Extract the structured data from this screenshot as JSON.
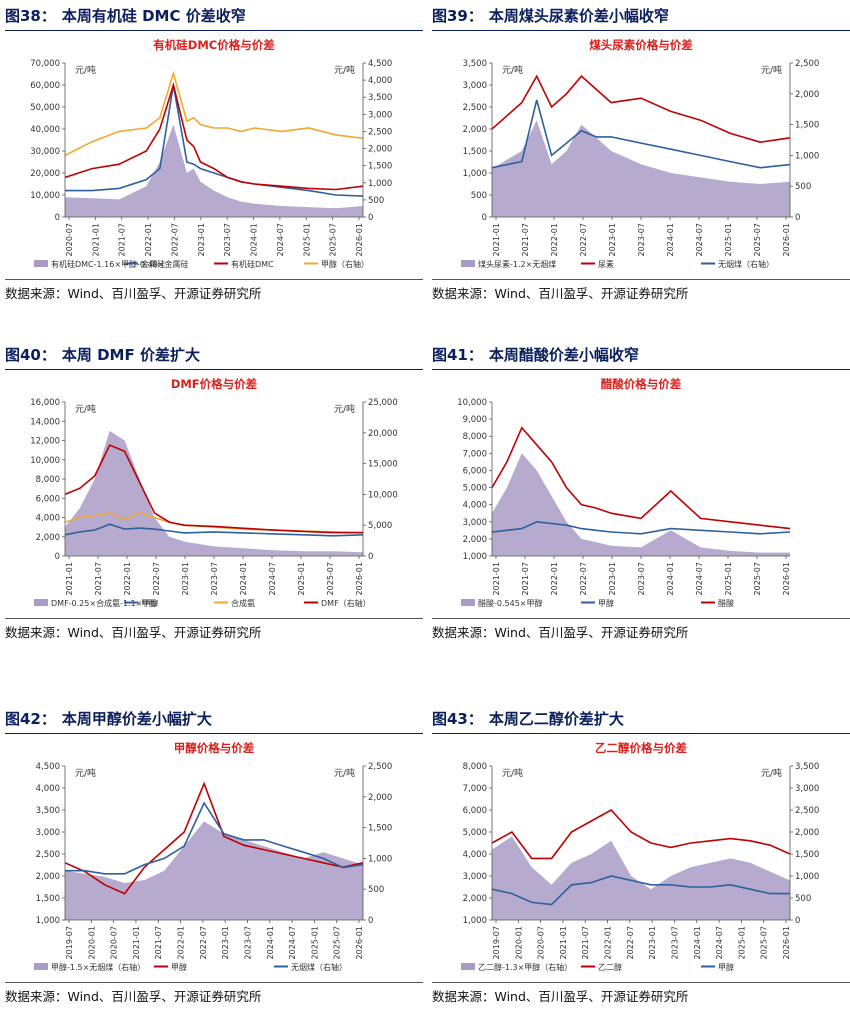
{
  "source_text": "数据来源：Wind、百川盈孚、开源证券研究所",
  "colors": {
    "title": "#0b1f5c",
    "chart_title": "#d9201c",
    "red": "#c00000",
    "blue": "#2e5f9e",
    "orange": "#f0a830",
    "purple": "#a99bc6"
  },
  "panels": [
    {
      "num": "图38：",
      "title": "本周有机硅 DMC 价差收窄"
    },
    {
      "num": "图39：",
      "title": "本周煤头尿素价差小幅收窄"
    },
    {
      "num": "图40：",
      "title": "本周 DMF 价差扩大"
    },
    {
      "num": "图41：",
      "title": "本周醋酸价差小幅收窄"
    },
    {
      "num": "图42：",
      "title": "本周甲醇价差小幅扩大"
    },
    {
      "num": "图43：",
      "title": "本周乙二醇价差扩大"
    }
  ],
  "chart_data": [
    {
      "type": "line",
      "title": "有机硅DMC价格与价差",
      "unit_left": "元/吨",
      "unit_right": "元/吨",
      "left_ticks": [
        "0",
        "10,000",
        "20,000",
        "30,000",
        "40,000",
        "50,000",
        "60,000",
        "70,000"
      ],
      "right_ticks": [
        "0",
        "500",
        "1,000",
        "1,500",
        "2,000",
        "2,500",
        "3,000",
        "3,500",
        "4,000",
        "4,500"
      ],
      "ylim": [
        0,
        70000
      ],
      "y2lim": [
        0,
        4500
      ],
      "x_labels": [
        "2020-07",
        "2021-01",
        "2021-07",
        "2022-01",
        "2022-07",
        "2023-01",
        "2023-07",
        "2024-01",
        "2024-07",
        "2025-01",
        "2025-07",
        "2026-01"
      ],
      "x": [
        0,
        2,
        4,
        6,
        7,
        8,
        9,
        9.5,
        10,
        11,
        12,
        13,
        14,
        16,
        18,
        20,
        22
      ],
      "series": [
        {
          "name": "有机硅DMC-1.16×甲醇-0.48×金属硅",
          "kind": "area",
          "axis": "left",
          "color": "#a99bc6",
          "values": [
            9000,
            8500,
            8000,
            14000,
            25000,
            42000,
            20000,
            22000,
            16000,
            12000,
            9000,
            7000,
            6000,
            5000,
            4500,
            4000,
            5000
          ]
        },
        {
          "name": "金属硅",
          "kind": "line",
          "axis": "left",
          "color": "#2e5f9e",
          "values": [
            12000,
            12000,
            13000,
            17000,
            22000,
            60000,
            25000,
            24000,
            22000,
            20000,
            18000,
            16000,
            15000,
            13500,
            12000,
            10000,
            9500
          ]
        },
        {
          "name": "有机硅DMC",
          "kind": "line",
          "axis": "left",
          "color": "#c00000",
          "values": [
            18000,
            22000,
            24000,
            30000,
            40000,
            60000,
            35000,
            32000,
            25000,
            22000,
            18000,
            16000,
            15000,
            14000,
            13000,
            12500,
            14000
          ]
        },
        {
          "name": "甲醇（右轴）",
          "kind": "line",
          "axis": "right",
          "color": "#f0a830",
          "values": [
            1800,
            2200,
            2500,
            2600,
            2900,
            4200,
            2800,
            2900,
            2700,
            2600,
            2600,
            2500,
            2600,
            2500,
            2600,
            2400,
            2300
          ]
        }
      ]
    },
    {
      "type": "line",
      "title": "煤头尿素价格与价差",
      "unit_left": "元/吨",
      "unit_right": "元/吨",
      "left_ticks": [
        "0",
        "500",
        "1,000",
        "1,500",
        "2,000",
        "2,500",
        "3,000",
        "3,500"
      ],
      "right_ticks": [
        "0",
        "500",
        "1,000",
        "1,500",
        "2,000",
        "2,500"
      ],
      "ylim": [
        0,
        3500
      ],
      "y2lim": [
        0,
        2500
      ],
      "x_labels": [
        "2021-01",
        "2021-07",
        "2022-01",
        "2022-07",
        "2023-01",
        "2023-07",
        "2024-01",
        "2024-07",
        "2025-01",
        "2025-07",
        "2026-01"
      ],
      "x": [
        0,
        1,
        2,
        3,
        4,
        5,
        6,
        7,
        8,
        10,
        12,
        14,
        16,
        18,
        20
      ],
      "series": [
        {
          "name": "煤头尿素-1.2×无烟煤",
          "kind": "area",
          "axis": "left",
          "color": "#a99bc6",
          "values": [
            1100,
            1300,
            1500,
            2200,
            1200,
            1500,
            2100,
            1800,
            1500,
            1200,
            1000,
            900,
            800,
            750,
            800
          ]
        },
        {
          "name": "尿素",
          "kind": "line",
          "axis": "left",
          "color": "#c00000",
          "values": [
            2000,
            2300,
            2600,
            3200,
            2500,
            2800,
            3200,
            2900,
            2600,
            2700,
            2400,
            2200,
            1900,
            1700,
            1800
          ]
        },
        {
          "name": "无烟煤（右轴）",
          "kind": "line",
          "axis": "right",
          "color": "#2e5f9e",
          "values": [
            800,
            850,
            900,
            1900,
            1000,
            1200,
            1400,
            1300,
            1300,
            1200,
            1100,
            1000,
            900,
            800,
            850
          ]
        }
      ]
    },
    {
      "type": "line",
      "title": "DMF价格与价差",
      "unit_left": "元/吨",
      "unit_right": "元/吨",
      "left_ticks": [
        "0",
        "2,000",
        "4,000",
        "6,000",
        "8,000",
        "10,000",
        "12,000",
        "14,000",
        "16,000"
      ],
      "right_ticks": [
        "0",
        "5,000",
        "10,000",
        "15,000",
        "20,000",
        "25,000"
      ],
      "ylim": [
        0,
        16000
      ],
      "y2lim": [
        0,
        25000
      ],
      "x_labels": [
        "2021-01",
        "2021-07",
        "2022-01",
        "2022-07",
        "2023-01",
        "2023-07",
        "2024-01",
        "2024-07",
        "2025-01",
        "2025-07",
        "2026-01"
      ],
      "x": [
        0,
        1,
        2,
        3,
        4,
        5,
        6,
        7,
        8,
        10,
        12,
        14,
        16,
        18,
        20
      ],
      "series": [
        {
          "name": "DMF-0.25×合成氨-1.1×甲醇",
          "kind": "area",
          "axis": "left",
          "color": "#a99bc6",
          "values": [
            3000,
            5000,
            8000,
            13000,
            12000,
            8000,
            4000,
            2000,
            1500,
            1000,
            800,
            600,
            500,
            500,
            400
          ]
        },
        {
          "name": "甲醇",
          "kind": "line",
          "axis": "left",
          "color": "#2e5f9e",
          "values": [
            2200,
            2500,
            2700,
            3300,
            2800,
            2900,
            2800,
            2600,
            2400,
            2500,
            2400,
            2300,
            2200,
            2100,
            2200
          ]
        },
        {
          "name": "合成氨",
          "kind": "line",
          "axis": "left",
          "color": "#f0a830",
          "values": [
            3500,
            4000,
            4200,
            4500,
            3800,
            4500,
            4000,
            3500,
            3200,
            3000,
            2800,
            2700,
            2600,
            2500,
            2400
          ]
        },
        {
          "name": "DMF（右轴）",
          "kind": "line",
          "axis": "right",
          "color": "#c00000",
          "values": [
            10000,
            11000,
            13000,
            18000,
            17000,
            12000,
            7000,
            5500,
            5000,
            4800,
            4500,
            4200,
            4000,
            3800,
            3800
          ]
        }
      ]
    },
    {
      "type": "line",
      "title": "醋酸价格与价差",
      "unit_left": "",
      "unit_right": "",
      "left_ticks": [
        "1,000",
        "2,000",
        "3,000",
        "4,000",
        "5,000",
        "6,000",
        "7,000",
        "8,000",
        "9,000",
        "10,000"
      ],
      "right_ticks": [],
      "ylim": [
        1000,
        10000
      ],
      "y2lim": null,
      "x_labels": [
        "2021-01",
        "2021-07",
        "2022-01",
        "2022-07",
        "2023-01",
        "2023-07",
        "2024-01",
        "2024-07",
        "2025-01",
        "2025-07",
        "2026-01"
      ],
      "x": [
        0,
        1,
        2,
        3,
        4,
        5,
        6,
        7,
        8,
        10,
        12,
        14,
        16,
        18,
        20
      ],
      "series": [
        {
          "name": "醋酸-0.545×甲醇",
          "kind": "area",
          "axis": "left",
          "color": "#a99bc6",
          "values": [
            3500,
            5000,
            7000,
            6000,
            4500,
            3000,
            2000,
            1800,
            1600,
            1500,
            2500,
            1500,
            1300,
            1200,
            1200
          ]
        },
        {
          "name": "甲醇",
          "kind": "line",
          "axis": "left",
          "color": "#2e5f9e",
          "values": [
            2400,
            2500,
            2600,
            3000,
            2900,
            2800,
            2600,
            2500,
            2400,
            2300,
            2600,
            2500,
            2400,
            2300,
            2400
          ]
        },
        {
          "name": "醋酸",
          "kind": "line",
          "axis": "left",
          "color": "#c00000",
          "values": [
            5000,
            6500,
            8500,
            7500,
            6500,
            5000,
            4000,
            3800,
            3500,
            3200,
            4800,
            3200,
            3000,
            2800,
            2600
          ]
        }
      ]
    },
    {
      "type": "line",
      "title": "甲醇价格与价差",
      "unit_left": "元/吨",
      "unit_right": "元/吨",
      "left_ticks": [
        "1,000",
        "1,500",
        "2,000",
        "2,500",
        "3,000",
        "3,500",
        "4,000",
        "4,500"
      ],
      "right_ticks": [
        "0",
        "500",
        "1,000",
        "1,500",
        "2,000",
        "2,500"
      ],
      "ylim": [
        1000,
        4500
      ],
      "y2lim": [
        0,
        2500
      ],
      "x_labels": [
        "2019-07",
        "2020-01",
        "2020-07",
        "2021-01",
        "2021-07",
        "2022-01",
        "2022-07",
        "2023-01",
        "2023-07",
        "2024-01",
        "2024-07",
        "2025-01",
        "2025-07",
        "2026-01"
      ],
      "x": [
        0,
        1,
        2,
        3,
        4,
        5,
        6,
        7,
        8,
        9,
        10,
        11,
        12,
        13,
        14,
        15
      ],
      "series": [
        {
          "name": "甲醇-1.5×无烟煤（右轴）",
          "kind": "area",
          "axis": "right",
          "color": "#a99bc6",
          "values": [
            800,
            750,
            700,
            600,
            650,
            800,
            1200,
            1600,
            1400,
            1300,
            1200,
            1100,
            1000,
            1100,
            1000,
            900
          ]
        },
        {
          "name": "甲醇",
          "kind": "line",
          "axis": "left",
          "color": "#c00000",
          "values": [
            2300,
            2100,
            1800,
            1600,
            2200,
            2600,
            3000,
            4100,
            2900,
            2700,
            2600,
            2500,
            2400,
            2300,
            2200,
            2300
          ]
        },
        {
          "name": "无烟煤（右轴）",
          "kind": "line",
          "axis": "right",
          "color": "#2e5f9e",
          "values": [
            800,
            800,
            750,
            750,
            900,
            1000,
            1200,
            1900,
            1400,
            1300,
            1300,
            1200,
            1100,
            1000,
            850,
            900
          ]
        }
      ]
    },
    {
      "type": "line",
      "title": "乙二醇价格与价差",
      "unit_left": "元/吨",
      "unit_right": "元/吨",
      "left_ticks": [
        "1,000",
        "2,000",
        "3,000",
        "4,000",
        "5,000",
        "6,000",
        "7,000",
        "8,000"
      ],
      "right_ticks": [
        "0",
        "500",
        "1,000",
        "1,500",
        "2,000",
        "2,500",
        "3,000",
        "3,500"
      ],
      "ylim": [
        1000,
        8000
      ],
      "y2lim": [
        0,
        3500
      ],
      "x_labels": [
        "2019-07",
        "2020-01",
        "2020-07",
        "2021-01",
        "2021-07",
        "2022-01",
        "2022-07",
        "2023-01",
        "2023-07",
        "2024-01",
        "2024-07",
        "2025-01",
        "2025-07",
        "2026-01"
      ],
      "x": [
        0,
        1,
        2,
        3,
        4,
        5,
        6,
        7,
        8,
        9,
        10,
        11,
        12,
        13,
        14,
        15
      ],
      "series": [
        {
          "name": "乙二醇-1.3×甲醇（右轴）",
          "kind": "area",
          "axis": "right",
          "color": "#a99bc6",
          "values": [
            1600,
            1900,
            1200,
            800,
            1300,
            1500,
            1800,
            1000,
            700,
            1000,
            1200,
            1300,
            1400,
            1300,
            1100,
            900
          ]
        },
        {
          "name": "乙二醇",
          "kind": "line",
          "axis": "left",
          "color": "#c00000",
          "values": [
            4500,
            5000,
            3800,
            3800,
            5000,
            5500,
            6000,
            5000,
            4500,
            4300,
            4500,
            4600,
            4700,
            4600,
            4400,
            4000
          ]
        },
        {
          "name": "甲醇",
          "kind": "line",
          "axis": "left",
          "color": "#2e5f9e",
          "values": [
            2400,
            2200,
            1800,
            1700,
            2600,
            2700,
            3000,
            2800,
            2600,
            2600,
            2500,
            2500,
            2600,
            2400,
            2200,
            2200
          ]
        }
      ]
    }
  ]
}
